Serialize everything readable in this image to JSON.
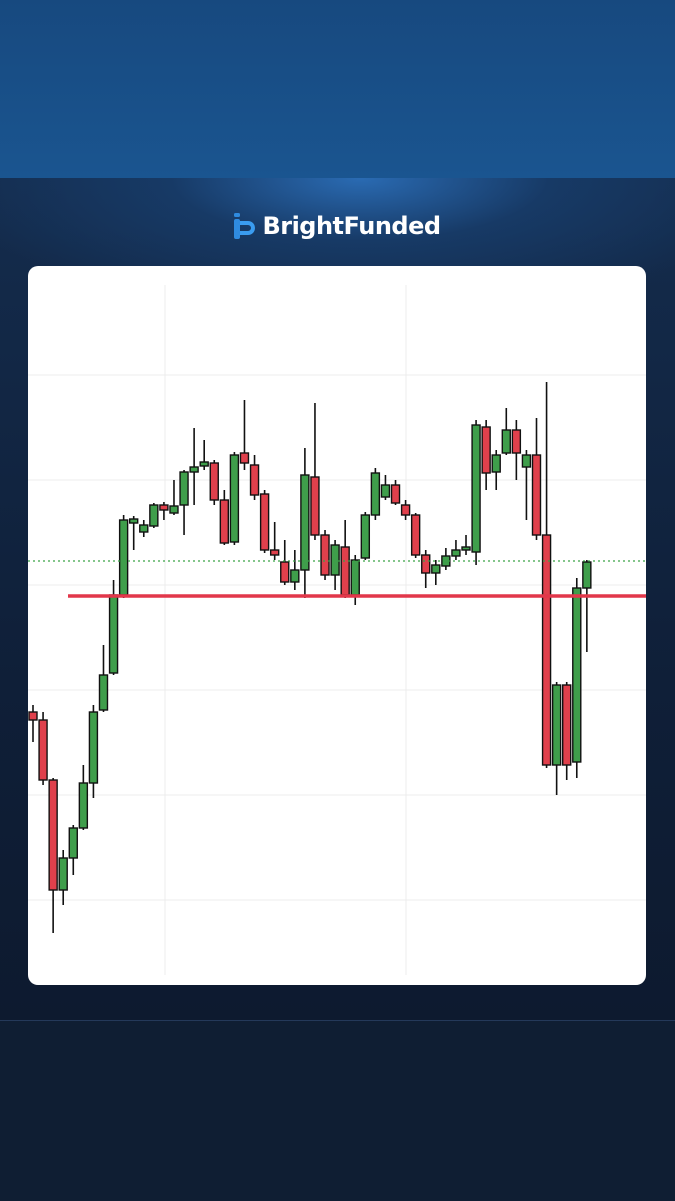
{
  "header": {
    "brand": "BrightFunded"
  },
  "chart_data": {
    "type": "candlestick",
    "open": [
      263,
      255,
      195,
      85,
      117,
      147,
      192,
      265,
      302,
      380,
      452,
      443,
      449,
      470,
      462,
      470,
      503,
      509,
      512,
      475,
      433,
      522,
      510,
      481,
      425,
      413,
      393,
      405,
      498,
      440,
      400,
      428,
      380,
      417,
      460,
      478,
      490,
      470,
      460,
      420,
      402,
      409,
      419,
      425,
      423,
      548,
      503,
      522,
      545,
      508,
      520,
      440,
      210,
      290,
      213,
      387
    ],
    "high": [
      270,
      263,
      197,
      125,
      150,
      210,
      270,
      330,
      395,
      460,
      459,
      455,
      472,
      473,
      495,
      505,
      547,
      535,
      515,
      485,
      523,
      575,
      520,
      485,
      453,
      435,
      425,
      527,
      572,
      445,
      435,
      455,
      420,
      463,
      507,
      500,
      495,
      475,
      462,
      425,
      415,
      427,
      435,
      440,
      555,
      555,
      525,
      567,
      555,
      525,
      557,
      593,
      293,
      293,
      397,
      415
    ],
    "low": [
      233,
      190,
      42,
      70,
      100,
      145,
      177,
      263,
      300,
      377,
      425,
      438,
      447,
      455,
      460,
      440,
      470,
      505,
      470,
      430,
      430,
      505,
      475,
      422,
      415,
      390,
      385,
      377,
      435,
      395,
      385,
      377,
      370,
      415,
      455,
      475,
      470,
      455,
      417,
      387,
      390,
      405,
      415,
      420,
      410,
      485,
      485,
      520,
      495,
      455,
      435,
      207,
      180,
      195,
      197,
      323
    ],
    "close": [
      255,
      195,
      85,
      117,
      147,
      192,
      263,
      300,
      380,
      455,
      456,
      450,
      470,
      465,
      469,
      503,
      508,
      513,
      475,
      432,
      520,
      512,
      480,
      425,
      420,
      393,
      405,
      500,
      440,
      400,
      430,
      380,
      415,
      460,
      502,
      490,
      472,
      460,
      420,
      402,
      410,
      419,
      425,
      428,
      550,
      502,
      520,
      545,
      522,
      520,
      440,
      210,
      290,
      210,
      387,
      413
    ],
    "up_color": "#3f9e4b",
    "down_color": "#e0404c",
    "ylim": [
      0,
      690
    ],
    "yticks": [
      75,
      180,
      285,
      390,
      495,
      600
    ],
    "grid": true,
    "hlines": [
      {
        "value": 379,
        "color": "#e2374a",
        "style": "solid"
      },
      {
        "value": 414,
        "color": "#3aa346",
        "style": "dotted"
      }
    ]
  }
}
